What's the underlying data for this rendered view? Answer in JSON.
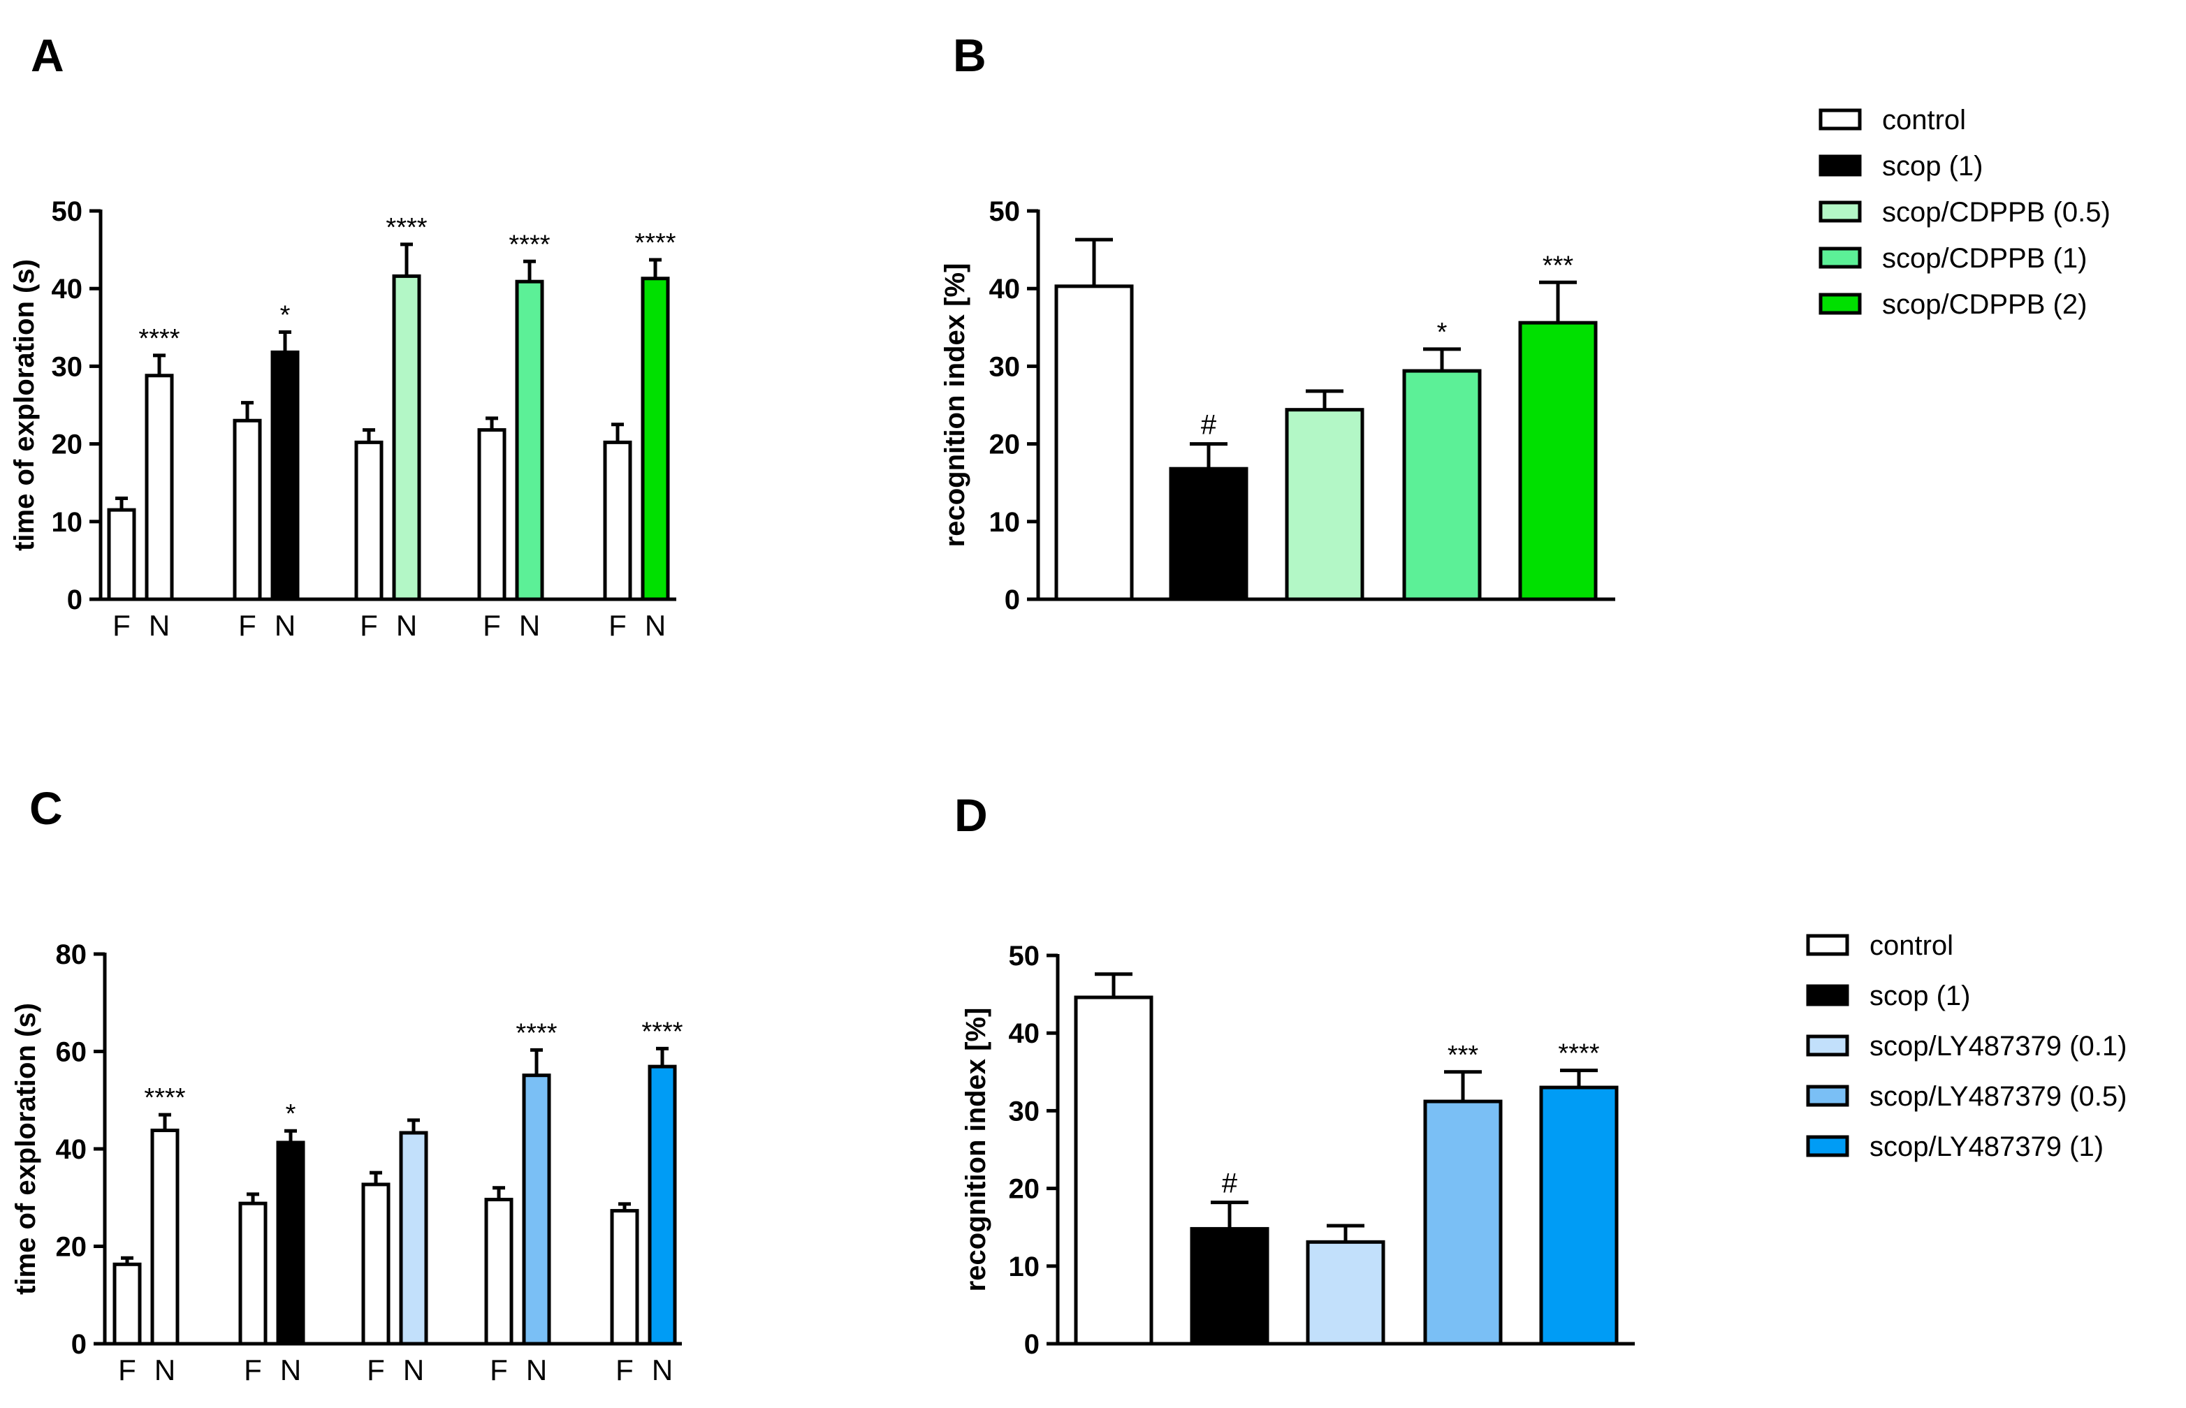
{
  "chart_data": [
    {
      "panel": "A",
      "type": "bar",
      "ylabel": "time of exploration (s)",
      "ylim": [
        0,
        50
      ],
      "yticks": [
        0,
        10,
        20,
        30,
        40,
        50
      ],
      "groups": [
        {
          "bars": [
            {
              "label": "F",
              "value": 11.5,
              "err": 1.5,
              "fill": "#ffffff",
              "sig": ""
            },
            {
              "label": "N",
              "value": 28.8,
              "err": 2.6,
              "fill": "#ffffff",
              "sig": "****"
            }
          ]
        },
        {
          "bars": [
            {
              "label": "F",
              "value": 23.0,
              "err": 2.3,
              "fill": "#ffffff",
              "sig": ""
            },
            {
              "label": "N",
              "value": 31.8,
              "err": 2.6,
              "fill": "#000000",
              "sig": "*"
            }
          ]
        },
        {
          "bars": [
            {
              "label": "F",
              "value": 20.2,
              "err": 1.6,
              "fill": "#ffffff",
              "sig": ""
            },
            {
              "label": "N",
              "value": 41.6,
              "err": 4.1,
              "fill": "#b3f7c6",
              "sig": "****"
            }
          ]
        },
        {
          "bars": [
            {
              "label": "F",
              "value": 21.8,
              "err": 1.5,
              "fill": "#ffffff",
              "sig": ""
            },
            {
              "label": "N",
              "value": 40.9,
              "err": 2.6,
              "fill": "#5cf097",
              "sig": "****"
            }
          ]
        },
        {
          "bars": [
            {
              "label": "F",
              "value": 20.2,
              "err": 2.3,
              "fill": "#ffffff",
              "sig": ""
            },
            {
              "label": "N",
              "value": 41.3,
              "err": 2.4,
              "fill": "#00e000",
              "sig": "****"
            }
          ]
        }
      ]
    },
    {
      "panel": "B",
      "type": "bar",
      "ylabel": "recognition index [%]",
      "ylim": [
        0,
        50
      ],
      "yticks": [
        0,
        10,
        20,
        30,
        40,
        50
      ],
      "bars": [
        {
          "value": 40.3,
          "err": 6.0,
          "fill": "#ffffff",
          "sig": ""
        },
        {
          "value": 16.8,
          "err": 3.2,
          "fill": "#000000",
          "sig": "#"
        },
        {
          "value": 24.4,
          "err": 2.4,
          "fill": "#b3f7c6",
          "sig": ""
        },
        {
          "value": 29.4,
          "err": 2.8,
          "fill": "#5cf097",
          "sig": "*"
        },
        {
          "value": 35.6,
          "err": 5.2,
          "fill": "#00e000",
          "sig": "***"
        }
      ],
      "legend": [
        {
          "label": "control",
          "fill": "#ffffff"
        },
        {
          "label": "scop (1)",
          "fill": "#000000"
        },
        {
          "label": "scop/CDPPB (0.5)",
          "fill": "#b3f7c6"
        },
        {
          "label": "scop/CDPPB (1)",
          "fill": "#5cf097"
        },
        {
          "label": "scop/CDPPB (2)",
          "fill": "#00e000"
        }
      ]
    },
    {
      "panel": "C",
      "type": "bar",
      "ylabel": "time of exploration (s)",
      "ylim": [
        0,
        80
      ],
      "yticks": [
        0,
        20,
        40,
        60,
        80
      ],
      "groups": [
        {
          "bars": [
            {
              "label": "F",
              "value": 16.3,
              "err": 1.3,
              "fill": "#ffffff",
              "sig": ""
            },
            {
              "label": "N",
              "value": 43.8,
              "err": 3.2,
              "fill": "#ffffff",
              "sig": "****"
            }
          ]
        },
        {
          "bars": [
            {
              "label": "F",
              "value": 28.8,
              "err": 1.9,
              "fill": "#ffffff",
              "sig": ""
            },
            {
              "label": "N",
              "value": 41.3,
              "err": 2.4,
              "fill": "#000000",
              "sig": "*"
            }
          ]
        },
        {
          "bars": [
            {
              "label": "F",
              "value": 32.7,
              "err": 2.4,
              "fill": "#ffffff",
              "sig": ""
            },
            {
              "label": "N",
              "value": 43.3,
              "err": 2.6,
              "fill": "#c2e0fb",
              "sig": ""
            }
          ]
        },
        {
          "bars": [
            {
              "label": "F",
              "value": 29.6,
              "err": 2.4,
              "fill": "#ffffff",
              "sig": ""
            },
            {
              "label": "N",
              "value": 55.1,
              "err": 5.2,
              "fill": "#7abff5",
              "sig": "****"
            }
          ]
        },
        {
          "bars": [
            {
              "label": "F",
              "value": 27.3,
              "err": 1.4,
              "fill": "#ffffff",
              "sig": ""
            },
            {
              "label": "N",
              "value": 56.9,
              "err": 3.7,
              "fill": "#009cf5",
              "sig": "****"
            }
          ]
        }
      ]
    },
    {
      "panel": "D",
      "type": "bar",
      "ylabel": "recognition index [%]",
      "ylim": [
        0,
        50
      ],
      "yticks": [
        0,
        10,
        20,
        30,
        40,
        50
      ],
      "bars": [
        {
          "value": 44.6,
          "err": 3.0,
          "fill": "#ffffff",
          "sig": ""
        },
        {
          "value": 14.8,
          "err": 3.4,
          "fill": "#000000",
          "sig": "#"
        },
        {
          "value": 13.1,
          "err": 2.1,
          "fill": "#c2e0fb",
          "sig": ""
        },
        {
          "value": 31.2,
          "err": 3.8,
          "fill": "#7abff5",
          "sig": "***"
        },
        {
          "value": 33.0,
          "err": 2.2,
          "fill": "#009cf5",
          "sig": "****"
        }
      ],
      "legend": [
        {
          "label": "control",
          "fill": "#ffffff"
        },
        {
          "label": "scop (1)",
          "fill": "#000000"
        },
        {
          "label": "scop/LY487379 (0.1)",
          "fill": "#c2e0fb"
        },
        {
          "label": "scop/LY487379 (0.5)",
          "fill": "#7abff5"
        },
        {
          "label": "scop/LY487379 (1)",
          "fill": "#009cf5"
        }
      ]
    }
  ]
}
